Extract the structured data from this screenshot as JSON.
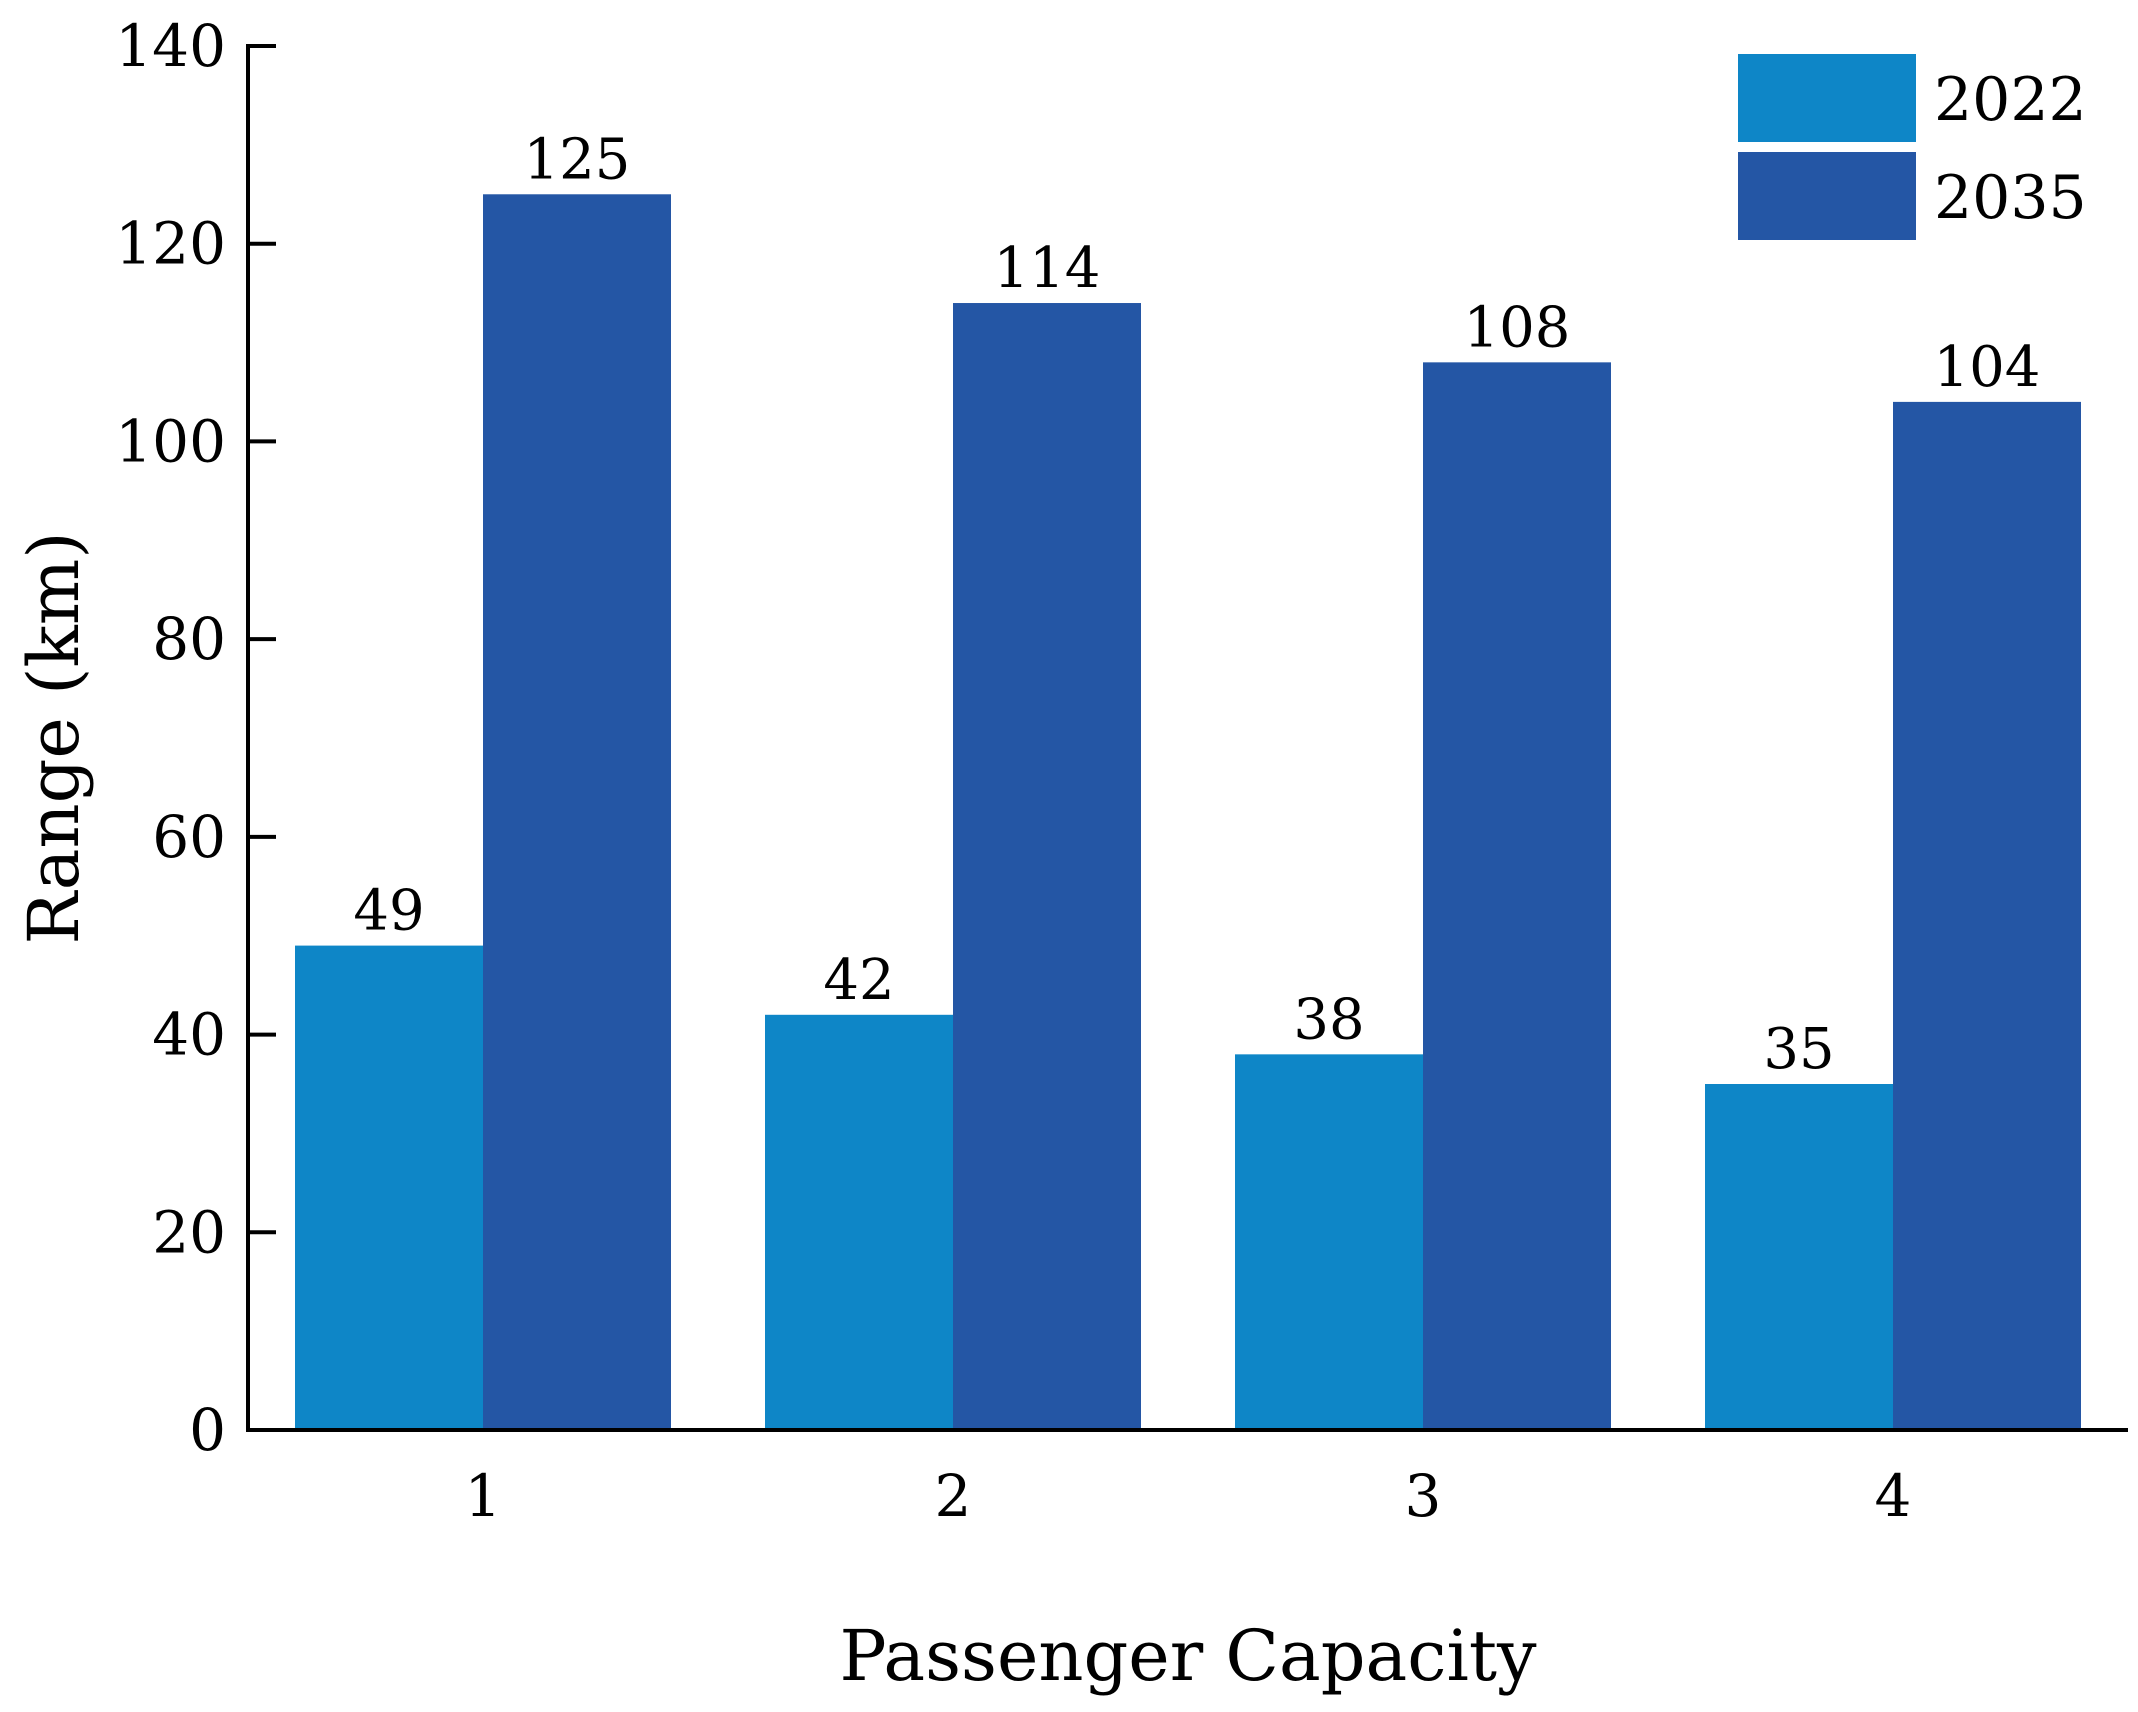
{
  "chart_data": {
    "type": "bar",
    "title": "",
    "xlabel": "Passenger Capacity",
    "ylabel": "Range (km)",
    "categories": [
      "1",
      "2",
      "3",
      "4"
    ],
    "series": [
      {
        "name": "2022",
        "color": "#0e86c7",
        "values": [
          49,
          42,
          38,
          35
        ],
        "value_labels": [
          "49",
          "42",
          "38",
          "35"
        ]
      },
      {
        "name": "2035",
        "color": "#2456a5",
        "values": [
          125,
          114,
          108,
          104
        ],
        "value_labels": [
          "125",
          "114",
          "108",
          "104"
        ]
      }
    ],
    "ylim": [
      0,
      140
    ],
    "yticks": [
      0,
      20,
      40,
      60,
      80,
      100,
      120,
      140
    ],
    "ytick_labels": [
      "0",
      "20",
      "40",
      "60",
      "80",
      "100",
      "120",
      "140"
    ],
    "grid": false,
    "legend_position": "top-right"
  }
}
